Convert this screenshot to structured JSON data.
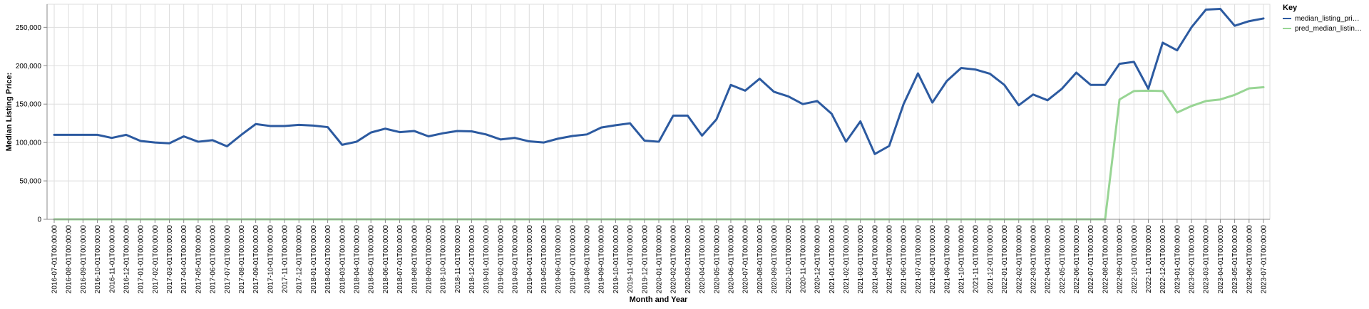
{
  "chart_data": {
    "type": "line",
    "xlabel": "Month and Year",
    "ylabel": "Median Listing Price:",
    "ylim": [
      0,
      280000
    ],
    "yticks": [
      0,
      50000,
      100000,
      150000,
      200000,
      250000
    ],
    "ytick_labels": [
      "0",
      "50,000",
      "100,000",
      "150,000",
      "200,000",
      "250,000"
    ],
    "grid": true,
    "legend": {
      "title": "Key",
      "position": "top-right",
      "entries": [
        {
          "label": "median_listing_pri…",
          "color": "#2c5aa0"
        },
        {
          "label": "pred_median_listin…",
          "color": "#98d594"
        }
      ]
    },
    "x": [
      "2016-07-01T00:00:00",
      "2016-08-01T00:00:00",
      "2016-09-01T00:00:00",
      "2016-10-01T00:00:00",
      "2016-11-01T00:00:00",
      "2016-12-01T00:00:00",
      "2017-01-01T00:00:00",
      "2017-02-01T00:00:00",
      "2017-03-01T00:00:00",
      "2017-04-01T00:00:00",
      "2017-05-01T00:00:00",
      "2017-06-01T00:00:00",
      "2017-07-01T00:00:00",
      "2017-08-01T00:00:00",
      "2017-09-01T00:00:00",
      "2017-10-01T00:00:00",
      "2017-11-01T00:00:00",
      "2017-12-01T00:00:00",
      "2018-01-01T00:00:00",
      "2018-02-01T00:00:00",
      "2018-03-01T00:00:00",
      "2018-04-01T00:00:00",
      "2018-05-01T00:00:00",
      "2018-06-01T00:00:00",
      "2018-07-01T00:00:00",
      "2018-08-01T00:00:00",
      "2018-09-01T00:00:00",
      "2018-10-01T00:00:00",
      "2018-11-01T00:00:00",
      "2018-12-01T00:00:00",
      "2019-01-01T00:00:00",
      "2019-02-01T00:00:00",
      "2019-03-01T00:00:00",
      "2019-04-01T00:00:00",
      "2019-05-01T00:00:00",
      "2019-06-01T00:00:00",
      "2019-07-01T00:00:00",
      "2019-08-01T00:00:00",
      "2019-09-01T00:00:00",
      "2019-10-01T00:00:00",
      "2019-11-01T00:00:00",
      "2019-12-01T00:00:00",
      "2020-01-01T00:00:00",
      "2020-02-01T00:00:00",
      "2020-03-01T00:00:00",
      "2020-04-01T00:00:00",
      "2020-05-01T00:00:00",
      "2020-06-01T00:00:00",
      "2020-07-01T00:00:00",
      "2020-08-01T00:00:00",
      "2020-09-01T00:00:00",
      "2020-10-01T00:00:00",
      "2020-11-01T00:00:00",
      "2020-12-01T00:00:00",
      "2021-01-01T00:00:00",
      "2021-02-01T00:00:00",
      "2021-03-01T00:00:00",
      "2021-04-01T00:00:00",
      "2021-05-01T00:00:00",
      "2021-06-01T00:00:00",
      "2021-07-01T00:00:00",
      "2021-08-01T00:00:00",
      "2021-09-01T00:00:00",
      "2021-10-01T00:00:00",
      "2021-11-01T00:00:00",
      "2021-12-01T00:00:00",
      "2022-01-01T00:00:00",
      "2022-02-01T00:00:00",
      "2022-03-01T00:00:00",
      "2022-04-01T00:00:00",
      "2022-05-01T00:00:00",
      "2022-06-01T00:00:00",
      "2022-07-01T00:00:00",
      "2022-08-01T00:00:00",
      "2022-09-01T00:00:00",
      "2022-10-01T00:00:00",
      "2022-11-01T00:00:00",
      "2022-12-01T00:00:00",
      "2023-01-01T00:00:00",
      "2023-02-01T00:00:00",
      "2023-03-01T00:00:00",
      "2023-04-01T00:00:00",
      "2023-05-01T00:00:00",
      "2023-06-01T00:00:00",
      "2023-07-01T00:00:00"
    ],
    "series": [
      {
        "name": "median_listing_pri…",
        "color": "#2c5aa0",
        "values": [
          110000,
          110000,
          110000,
          110000,
          106000,
          110000,
          102000,
          100000,
          99000,
          108000,
          101000,
          103000,
          95000,
          110000,
          124000,
          121500,
          121500,
          123000,
          122000,
          120000,
          97000,
          101000,
          113000,
          118000,
          113500,
          115000,
          108000,
          112000,
          115000,
          114500,
          110500,
          104000,
          106000,
          101500,
          100000,
          105000,
          108500,
          110500,
          119500,
          122500,
          125000,
          102500,
          101000,
          135000,
          135000,
          109000,
          130000,
          175000,
          167500,
          183000,
          166000,
          160000,
          150000,
          154000,
          137500,
          101000,
          127500,
          85000,
          95500,
          150000,
          190000,
          152000,
          180000,
          197000,
          195000,
          189500,
          175000,
          148500,
          162500,
          155000,
          170000,
          191000,
          175000,
          175000,
          202500,
          205000,
          170000,
          230000,
          220000,
          250000,
          273000,
          274000,
          252000,
          258000,
          261500
        ]
      },
      {
        "name": "pred_median_listin…",
        "color": "#98d594",
        "values": [
          0,
          0,
          0,
          0,
          0,
          0,
          0,
          0,
          0,
          0,
          0,
          0,
          0,
          0,
          0,
          0,
          0,
          0,
          0,
          0,
          0,
          0,
          0,
          0,
          0,
          0,
          0,
          0,
          0,
          0,
          0,
          0,
          0,
          0,
          0,
          0,
          0,
          0,
          0,
          0,
          0,
          0,
          0,
          0,
          0,
          0,
          0,
          0,
          0,
          0,
          0,
          0,
          0,
          0,
          0,
          0,
          0,
          0,
          0,
          0,
          0,
          0,
          0,
          0,
          0,
          0,
          0,
          0,
          0,
          0,
          0,
          0,
          0,
          0,
          156000,
          167000,
          167500,
          167000,
          139000,
          147500,
          154000,
          156000,
          162000,
          170500,
          172000
        ]
      }
    ]
  }
}
